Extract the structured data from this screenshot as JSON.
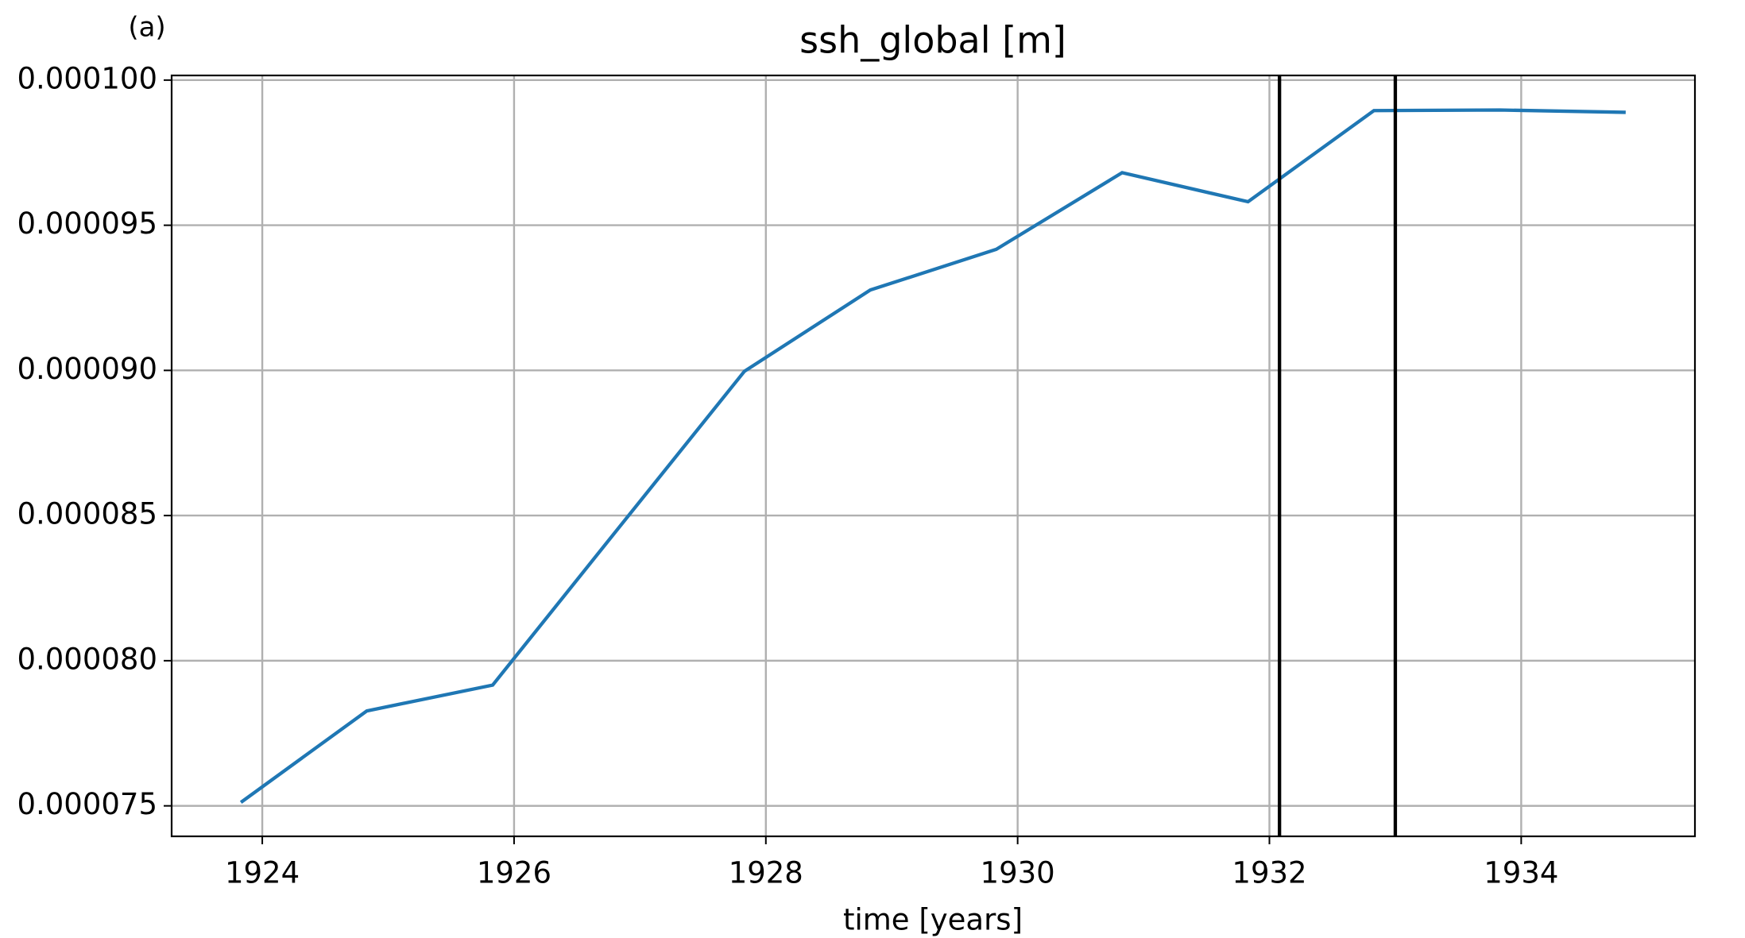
{
  "chart_data": {
    "type": "line",
    "title": "ssh_global [m]",
    "annotation": "(a)",
    "x_label": "time [years]",
    "x": [
      1923.83,
      1924.83,
      1925.83,
      1926.83,
      1927.83,
      1928.83,
      1929.83,
      1930.83,
      1931.83,
      1932.83,
      1933.83,
      1934.83
    ],
    "series": [
      {
        "name": "ssh_global",
        "color": "#1f77b4",
        "values": [
          7.512e-05,
          7.827e-05,
          7.916e-05,
          8.457e-05,
          8.997e-05,
          9.277e-05,
          9.417e-05,
          9.681e-05,
          9.581e-05,
          9.895e-05,
          9.897e-05,
          9.889e-05
        ]
      }
    ],
    "vlines": [
      1932.08,
      1933.0
    ],
    "vline_color": "#000000",
    "xlim": [
      1923.28,
      1935.38
    ],
    "xticks": [
      1924,
      1926,
      1928,
      1930,
      1932,
      1934
    ],
    "ylim": [
      7.395e-05,
      0.00010016
    ],
    "yticks": [
      {
        "value": 7.5e-05,
        "label": "0.000075"
      },
      {
        "value": 8e-05,
        "label": "0.000080"
      },
      {
        "value": 8.5e-05,
        "label": "0.000085"
      },
      {
        "value": 9e-05,
        "label": "0.000090"
      },
      {
        "value": 9.5e-05,
        "label": "0.000095"
      },
      {
        "value": 0.0001,
        "label": "0.000100"
      }
    ],
    "grid": true
  }
}
